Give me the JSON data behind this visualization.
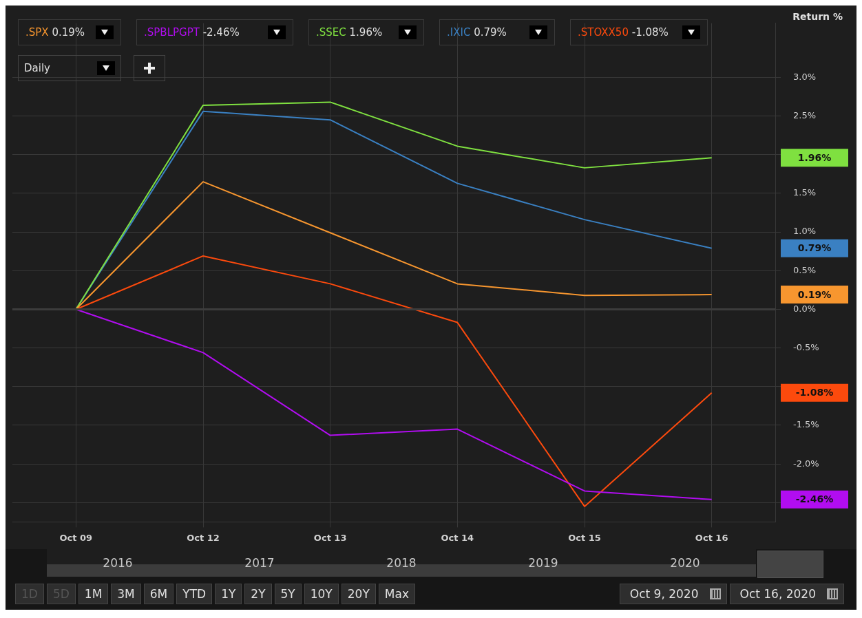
{
  "chart_data": {
    "type": "line",
    "y2label": "Return %",
    "categories": [
      "Oct 09",
      "Oct 12",
      "Oct 13",
      "Oct 14",
      "Oct 15",
      "Oct 16"
    ],
    "series": [
      {
        "name": ".SPX",
        "color": "#f7962f",
        "values": [
          0,
          1.65,
          0.99,
          0.33,
          0.18,
          0.19
        ]
      },
      {
        "name": ".SPBLPGPT",
        "color": "#b10df0",
        "values": [
          0,
          -0.56,
          -1.63,
          -1.55,
          -2.35,
          -2.46
        ]
      },
      {
        "name": ".SSEC",
        "color": "#7fe040",
        "values": [
          0,
          2.64,
          2.68,
          2.11,
          1.83,
          1.96
        ]
      },
      {
        "name": ".IXIC",
        "color": "#3a80c2",
        "values": [
          0,
          2.56,
          2.45,
          1.63,
          1.16,
          0.79
        ]
      },
      {
        "name": ".STOXX50",
        "color": "#fc4a0d",
        "values": [
          0,
          0.69,
          0.33,
          -0.17,
          -2.55,
          -1.08
        ]
      }
    ],
    "ylim": [
      -2.75,
      3.7
    ],
    "yticks": [
      {
        "value": -2.5,
        "label": null
      },
      {
        "value": -2,
        "label": "-2.0%"
      },
      {
        "value": -1.5,
        "label": "-1.5%"
      },
      {
        "value": -1,
        "label": null
      },
      {
        "value": -0.5,
        "label": "-0.5%"
      },
      {
        "value": 0,
        "label": "0.0%"
      },
      {
        "value": 0.5,
        "label": "0.5%"
      },
      {
        "value": 1,
        "label": "1.0%"
      },
      {
        "value": 1.5,
        "label": "1.5%"
      },
      {
        "value": 2,
        "label": null
      },
      {
        "value": 2.5,
        "label": "2.5%"
      },
      {
        "value": 3,
        "label": "3.0%"
      }
    ],
    "y2lim": [
      -2.75,
      3.7
    ],
    "y2ticks": [
      {
        "value": 0.19,
        "label": "0.19%"
      },
      {
        "value": -2.46,
        "label": "-2.46%"
      },
      {
        "value": 1.96,
        "label": "1.96%"
      },
      {
        "value": 0.79,
        "label": "0.79%"
      },
      {
        "value": -1.08,
        "label": "-1.08%"
      }
    ],
    "ref_lines": [
      {
        "axis": "y",
        "value": 0,
        "color": "#3c3c3c"
      }
    ],
    "grid": true,
    "legend": "top",
    "marker": "none",
    "line_style": "solid",
    "annotations": [
      "Daily",
      "2016",
      "2017",
      "2018",
      "2019",
      "2020",
      "1D",
      "5D",
      "1M",
      "3M",
      "6M",
      "YTD",
      "1Y",
      "2Y",
      "5Y",
      "10Y",
      "20Y",
      "Max",
      "Oct 9, 2020",
      "Oct 16, 2020"
    ]
  }
}
